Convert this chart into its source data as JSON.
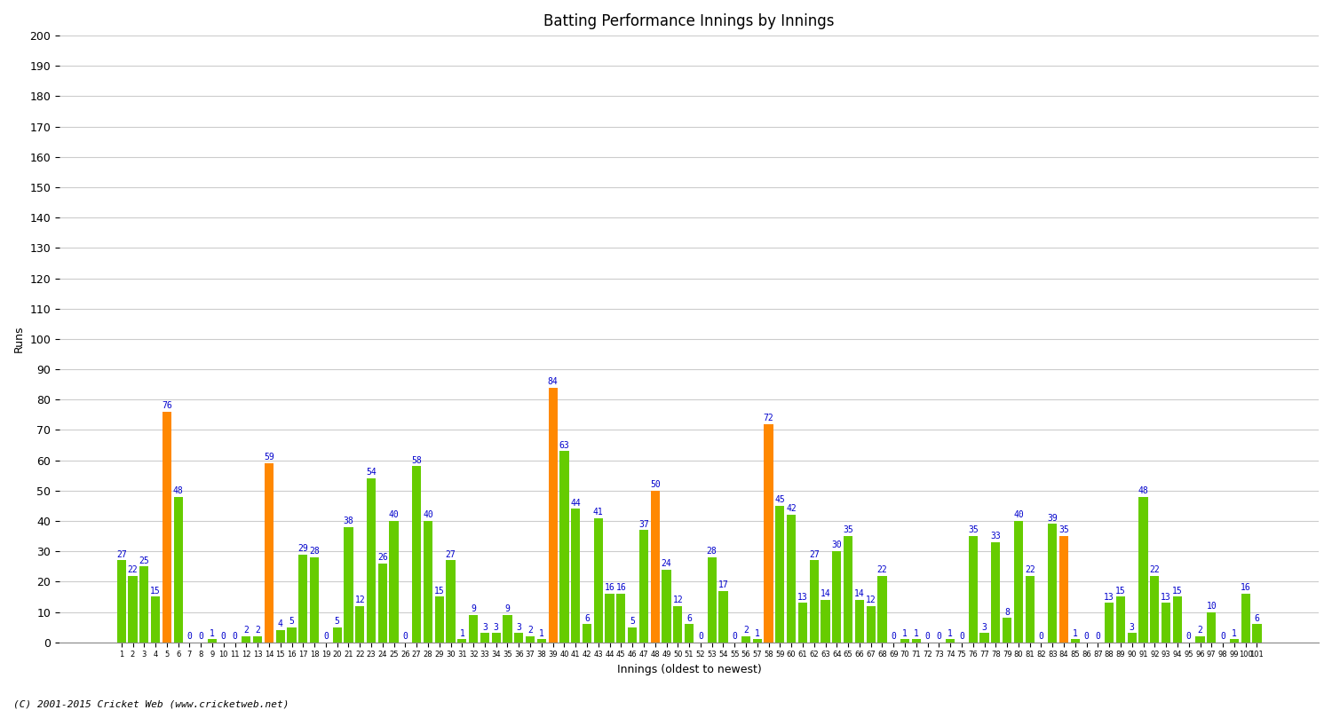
{
  "scores": [
    27,
    22,
    25,
    15,
    76,
    48,
    0,
    0,
    1,
    0,
    0,
    2,
    2,
    59,
    4,
    5,
    29,
    28,
    0,
    5,
    38,
    12,
    54,
    26,
    40,
    0,
    58,
    40,
    15,
    27,
    1,
    9,
    3,
    3,
    9,
    3,
    2,
    1,
    84,
    63,
    44,
    6,
    41,
    16,
    16,
    5,
    37,
    50,
    24,
    12,
    6,
    0,
    28,
    17,
    0,
    2,
    1,
    72,
    45,
    42,
    13,
    27,
    14,
    30,
    35,
    14,
    12,
    22,
    0,
    1,
    1,
    0,
    0,
    1,
    0,
    35,
    3,
    33,
    8,
    40,
    22,
    0,
    39,
    35,
    1,
    0,
    0,
    13,
    15,
    3,
    48,
    22,
    13,
    15,
    0,
    2,
    10,
    0,
    1,
    16,
    6
  ],
  "orange_indices": [
    4,
    13,
    38,
    47,
    57,
    83
  ],
  "bar_color_default": "#66cc00",
  "bar_color_orange": "#ff8800",
  "title": "Batting Performance Innings by Innings",
  "ylabel": "Runs",
  "xlabel": "Innings (oldest to newest)",
  "ylim": [
    0,
    200
  ],
  "yticks": [
    0,
    10,
    20,
    30,
    40,
    50,
    60,
    70,
    80,
    90,
    100,
    110,
    120,
    130,
    140,
    150,
    160,
    170,
    180,
    190,
    200
  ],
  "label_color": "#0000cc",
  "label_fontsize": 7,
  "grid_color": "#cccccc",
  "bg_color": "#ffffff",
  "footer": "(C) 2001-2015 Cricket Web (www.cricketweb.net)"
}
